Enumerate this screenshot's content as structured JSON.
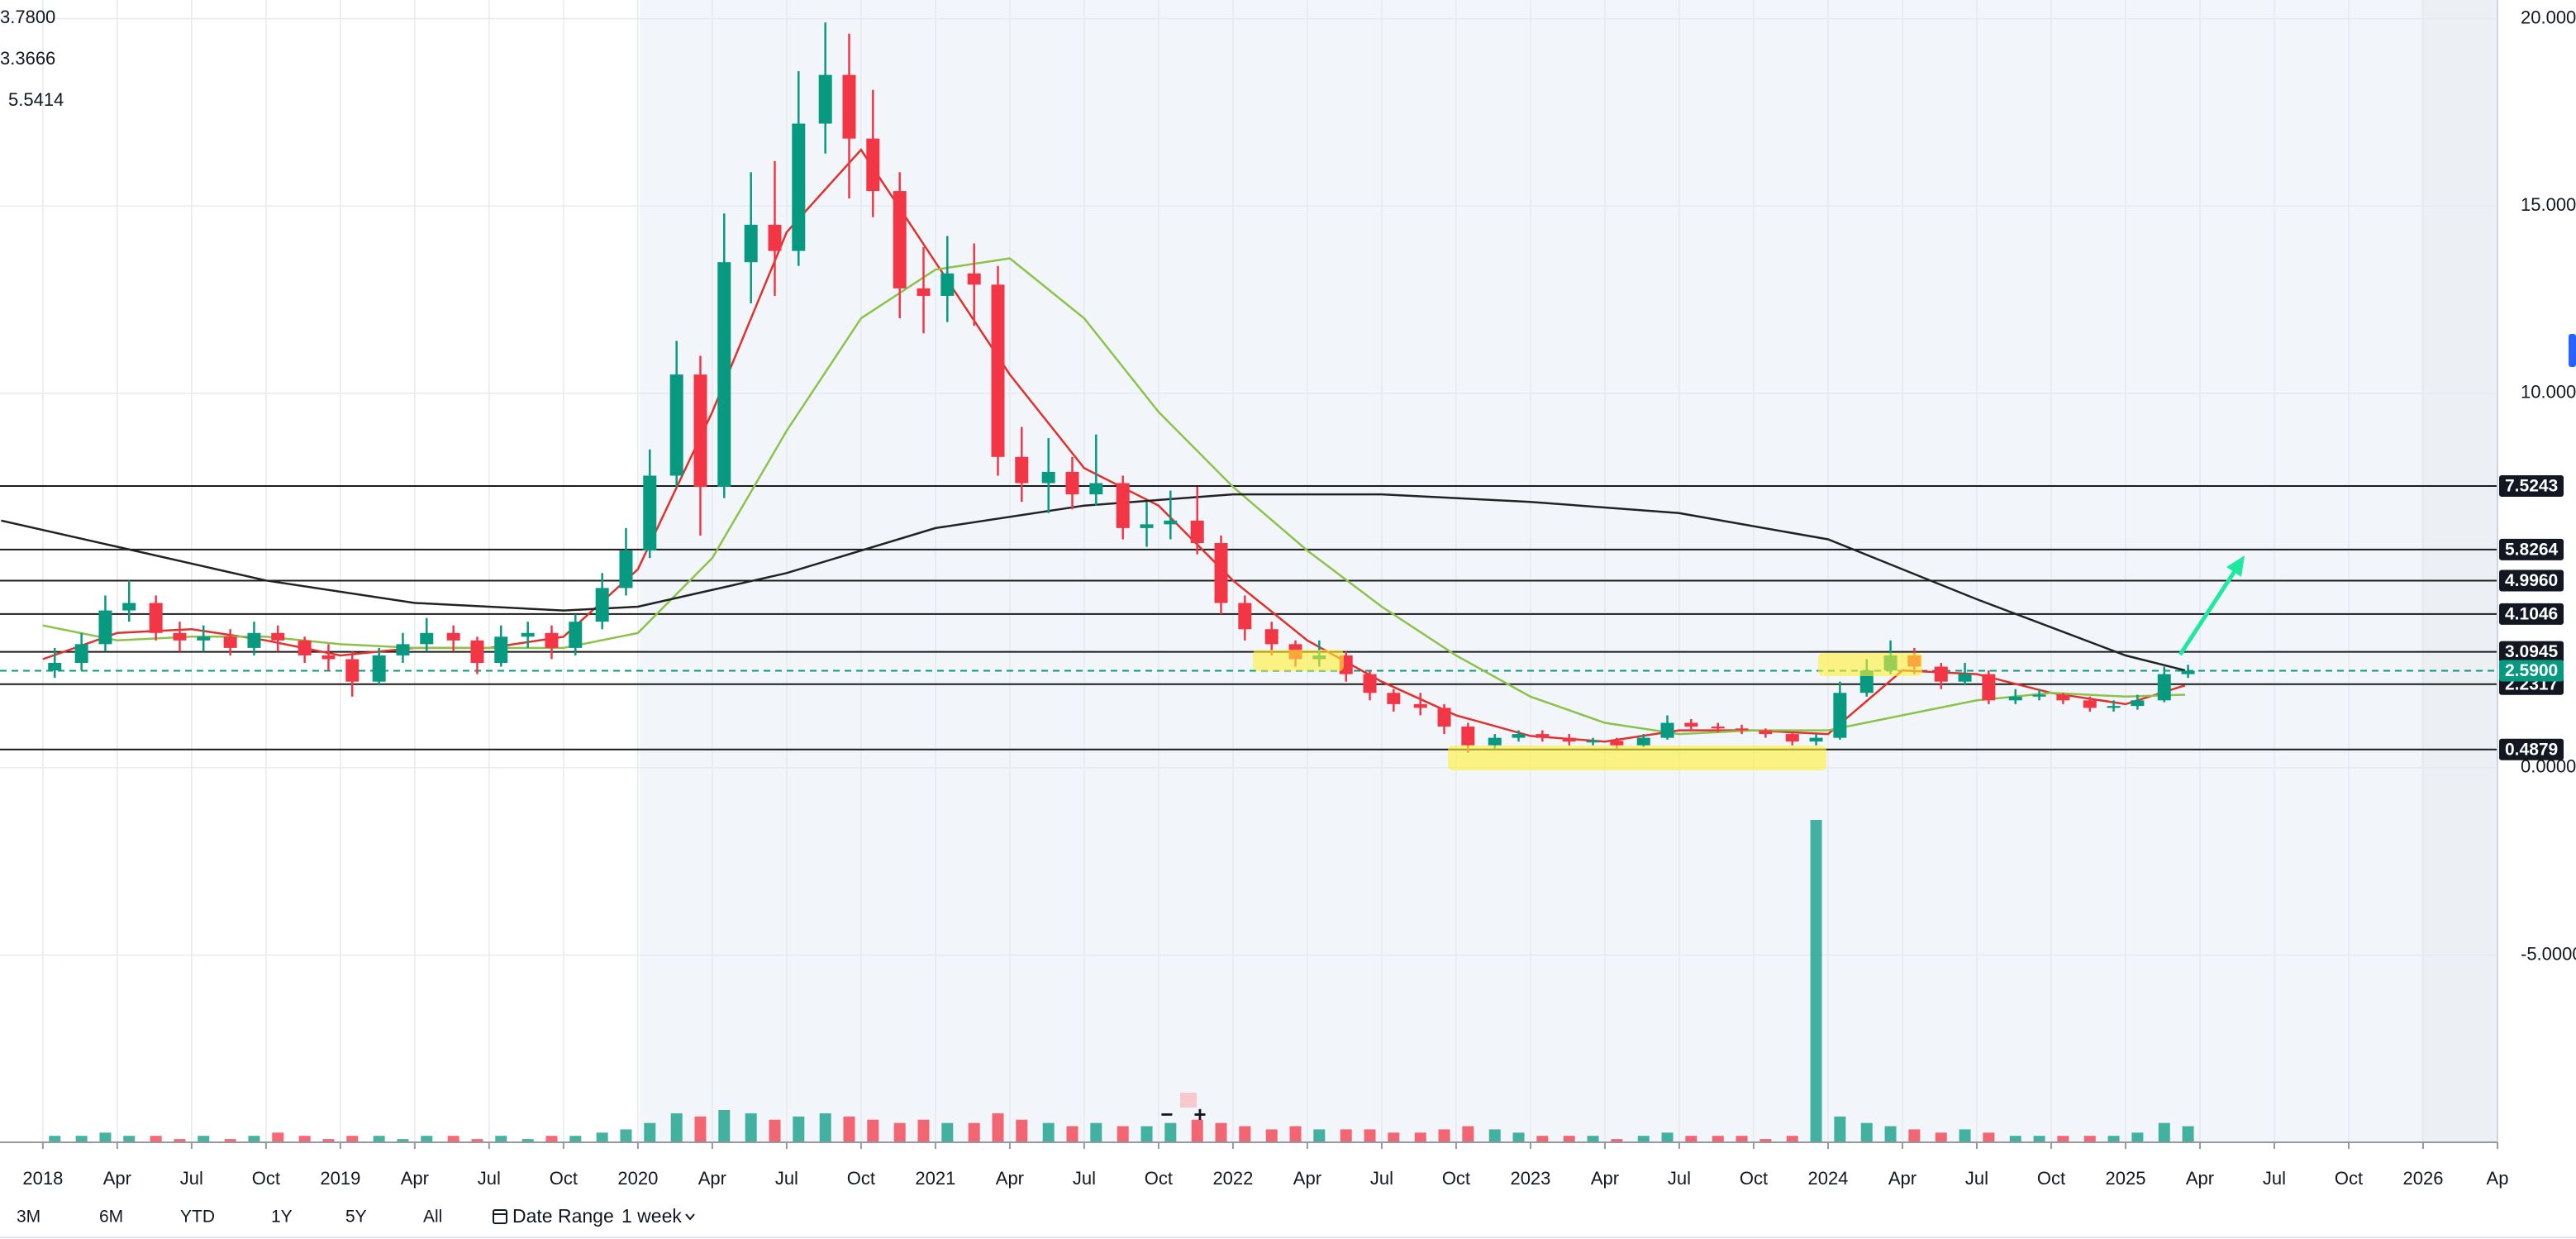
{
  "chart_data": {
    "type": "candlestick",
    "x": [
      2018.04,
      2018.13,
      2018.21,
      2018.29,
      2018.38,
      2018.46,
      2018.54,
      2018.63,
      2018.71,
      2018.79,
      2018.88,
      2018.96,
      2019.04,
      2019.13,
      2019.21,
      2019.29,
      2019.38,
      2019.46,
      2019.54,
      2019.63,
      2019.71,
      2019.79,
      2019.88,
      2019.96,
      2020.04,
      2020.13,
      2020.21,
      2020.29,
      2020.38,
      2020.46,
      2020.54,
      2020.63,
      2020.71,
      2020.79,
      2020.88,
      2020.96,
      2021.04,
      2021.13,
      2021.21,
      2021.29,
      2021.38,
      2021.46,
      2021.54,
      2021.63,
      2021.71,
      2021.79,
      2021.88,
      2021.96,
      2022.04,
      2022.13,
      2022.21,
      2022.29,
      2022.38,
      2022.46,
      2022.54,
      2022.63,
      2022.71,
      2022.79,
      2022.88,
      2022.96,
      2023.04,
      2023.13,
      2023.21,
      2023.29,
      2023.38,
      2023.46,
      2023.54,
      2023.63,
      2023.71,
      2023.79,
      2023.88,
      2023.96,
      2024.04,
      2024.13,
      2024.21,
      2024.29,
      2024.38,
      2024.46,
      2024.54,
      2024.63,
      2024.71,
      2024.79,
      2024.88,
      2024.96,
      2025.04,
      2025.13,
      2025.21
    ],
    "open": [
      2.6,
      2.8,
      3.3,
      4.2,
      4.4,
      3.6,
      3.4,
      3.5,
      3.2,
      3.6,
      3.4,
      3.0,
      2.9,
      2.3,
      3.0,
      3.3,
      3.6,
      3.4,
      2.8,
      3.5,
      3.6,
      3.2,
      3.9,
      4.8,
      5.8,
      7.8,
      10.5,
      7.5,
      13.5,
      14.5,
      13.8,
      17.2,
      18.5,
      16.8,
      15.4,
      12.8,
      12.6,
      13.2,
      12.9,
      8.3,
      7.6,
      7.9,
      7.3,
      7.6,
      6.4,
      6.5,
      6.6,
      6.0,
      4.4,
      3.7,
      3.3,
      2.9,
      3.0,
      2.5,
      2.0,
      1.7,
      1.6,
      1.1,
      0.6,
      0.8,
      0.9,
      0.8,
      0.7,
      0.72,
      0.6,
      0.8,
      1.2,
      1.1,
      1.05,
      1.0,
      0.9,
      0.7,
      0.8,
      2.0,
      2.6,
      3.0,
      2.7,
      2.3,
      2.5,
      1.8,
      1.9,
      1.95,
      1.8,
      1.6,
      1.65,
      1.8,
      2.5
    ],
    "high": [
      3.2,
      3.6,
      4.6,
      5.0,
      4.6,
      3.9,
      3.8,
      3.7,
      3.9,
      3.8,
      3.5,
      3.3,
      3.1,
      3.2,
      3.6,
      4.0,
      3.8,
      3.5,
      3.8,
      3.9,
      3.8,
      4.1,
      5.2,
      6.4,
      8.5,
      11.4,
      11.0,
      14.8,
      15.9,
      16.2,
      18.6,
      19.9,
      19.6,
      18.1,
      15.9,
      13.9,
      14.2,
      14.0,
      13.4,
      9.1,
      8.8,
      8.3,
      8.9,
      7.8,
      7.1,
      7.4,
      7.5,
      6.2,
      4.6,
      3.9,
      3.4,
      3.4,
      3.1,
      2.6,
      2.1,
      2.0,
      1.7,
      1.2,
      0.9,
      1.0,
      1.0,
      0.9,
      0.8,
      0.8,
      0.9,
      1.4,
      1.3,
      1.2,
      1.15,
      1.05,
      0.95,
      0.9,
      2.3,
      2.9,
      3.4,
      3.2,
      2.8,
      2.8,
      2.6,
      2.1,
      2.1,
      2.0,
      1.9,
      1.8,
      1.95,
      2.7,
      2.75
    ],
    "low": [
      2.4,
      2.6,
      3.1,
      3.9,
      3.4,
      3.1,
      3.1,
      3.0,
      3.0,
      3.1,
      2.8,
      2.6,
      1.9,
      2.2,
      2.8,
      3.1,
      3.1,
      2.5,
      2.7,
      3.2,
      2.9,
      3.0,
      3.7,
      4.6,
      5.6,
      7.5,
      6.2,
      7.2,
      12.4,
      12.6,
      13.4,
      16.4,
      15.2,
      14.7,
      12.0,
      11.6,
      11.9,
      11.8,
      7.8,
      7.1,
      6.8,
      6.9,
      7.0,
      6.1,
      5.9,
      6.1,
      5.7,
      4.1,
      3.4,
      3.0,
      2.7,
      2.7,
      2.3,
      1.8,
      1.5,
      1.4,
      0.9,
      0.4,
      0.5,
      0.7,
      0.7,
      0.6,
      0.6,
      0.5,
      0.55,
      0.75,
      1.0,
      0.95,
      0.9,
      0.8,
      0.6,
      0.6,
      0.75,
      1.9,
      2.5,
      2.5,
      2.1,
      2.2,
      1.7,
      1.7,
      1.8,
      1.7,
      1.5,
      1.5,
      1.55,
      1.75,
      2.4
    ],
    "close": [
      2.8,
      3.3,
      4.2,
      4.4,
      3.6,
      3.4,
      3.5,
      3.2,
      3.6,
      3.4,
      3.0,
      2.9,
      2.3,
      3.0,
      3.3,
      3.6,
      3.4,
      2.8,
      3.5,
      3.6,
      3.2,
      3.9,
      4.8,
      5.8,
      7.8,
      10.5,
      7.5,
      13.5,
      14.5,
      13.8,
      17.2,
      18.5,
      16.8,
      15.4,
      12.8,
      12.6,
      13.2,
      12.9,
      8.3,
      7.6,
      7.9,
      7.3,
      7.6,
      6.4,
      6.5,
      6.6,
      6.0,
      4.4,
      3.7,
      3.3,
      2.9,
      3.0,
      2.5,
      2.0,
      1.7,
      1.6,
      1.1,
      0.6,
      0.8,
      0.9,
      0.8,
      0.7,
      0.72,
      0.6,
      0.8,
      1.2,
      1.1,
      1.05,
      1.0,
      0.9,
      0.7,
      0.8,
      2.0,
      2.6,
      3.0,
      2.7,
      2.3,
      2.5,
      1.8,
      1.9,
      1.95,
      1.8,
      1.6,
      1.65,
      1.8,
      2.5,
      2.59
    ],
    "volume": [
      2,
      2,
      3,
      2,
      2,
      1,
      2,
      1,
      2,
      3,
      2,
      1,
      2,
      2,
      1,
      2,
      2,
      1,
      2,
      1,
      2,
      2,
      3,
      4,
      6,
      9,
      8,
      10,
      9,
      7,
      8,
      9,
      8,
      7,
      6,
      7,
      6,
      6,
      9,
      7,
      6,
      5,
      6,
      5,
      5,
      6,
      7,
      6,
      5,
      4,
      5,
      4,
      4,
      4,
      3,
      3,
      4,
      5,
      4,
      3,
      2,
      2,
      2,
      1,
      2,
      3,
      2,
      2,
      2,
      1,
      2,
      100,
      8,
      6,
      5,
      4,
      3,
      4,
      3,
      2,
      2,
      2,
      2,
      2,
      3,
      6,
      5
    ],
    "up_color": "#089981",
    "down_color": "#f23645",
    "moving_averages": [
      {
        "label": "3.7800",
        "color": "#e0312d",
        "x": [
          2018.0,
          2018.25,
          2018.5,
          2018.75,
          2019.0,
          2019.25,
          2019.5,
          2019.75,
          2020.0,
          2020.25,
          2020.5,
          2020.75,
          2021.0,
          2021.25,
          2021.5,
          2021.75,
          2022.0,
          2022.25,
          2022.5,
          2022.75,
          2023.0,
          2023.25,
          2023.5,
          2023.75,
          2024.0,
          2024.25,
          2024.5,
          2024.75,
          2025.0,
          2025.2
        ],
        "values": [
          2.9,
          3.6,
          3.7,
          3.4,
          3.0,
          3.2,
          3.2,
          3.5,
          5.3,
          9.5,
          14.3,
          16.5,
          13.5,
          10.5,
          8.0,
          7.0,
          5.0,
          3.4,
          2.3,
          1.4,
          0.85,
          0.7,
          1.0,
          1.0,
          0.9,
          2.6,
          2.5,
          2.0,
          1.7,
          2.2
        ]
      },
      {
        "label": "3.3666",
        "color": "#8bc34a",
        "x": [
          2018.0,
          2018.25,
          2018.5,
          2018.75,
          2019.0,
          2019.25,
          2019.5,
          2019.75,
          2020.0,
          2020.25,
          2020.5,
          2020.75,
          2021.0,
          2021.25,
          2021.5,
          2021.75,
          2022.0,
          2022.25,
          2022.5,
          2022.75,
          2023.0,
          2023.25,
          2023.5,
          2023.75,
          2024.0,
          2024.25,
          2024.5,
          2024.75,
          2025.0,
          2025.2
        ],
        "values": [
          3.8,
          3.4,
          3.5,
          3.5,
          3.3,
          3.2,
          3.2,
          3.2,
          3.6,
          5.6,
          9.0,
          12.0,
          13.3,
          13.6,
          12.0,
          9.5,
          7.5,
          5.8,
          4.3,
          3.0,
          1.9,
          1.2,
          0.9,
          1.0,
          1.0,
          1.4,
          1.8,
          2.0,
          1.9,
          1.95
        ]
      },
      {
        "label": "5.5414",
        "color": "#222222",
        "x": [
          2017.86,
          2018.25,
          2018.75,
          2019.25,
          2019.75,
          2020.0,
          2020.5,
          2021.0,
          2021.5,
          2022.0,
          2022.5,
          2023.0,
          2023.5,
          2024.0,
          2024.5,
          2025.0,
          2025.2
        ],
        "values": [
          6.6,
          5.9,
          5.0,
          4.4,
          4.2,
          4.3,
          5.2,
          6.4,
          7.0,
          7.3,
          7.3,
          7.1,
          6.8,
          6.1,
          4.5,
          3.0,
          2.6
        ]
      }
    ],
    "levels": [
      {
        "value": 7.5243,
        "label": "7.5243"
      },
      {
        "value": 5.8264,
        "label": "5.8264"
      },
      {
        "value": 4.996,
        "label": "4.9960"
      },
      {
        "value": 4.1046,
        "label": "4.1046"
      },
      {
        "value": 3.0945,
        "label": "3.0945"
      },
      {
        "value": 2.2317,
        "label": "2.2317"
      },
      {
        "value": 0.4879,
        "label": "0.4879"
      }
    ],
    "last_price": {
      "value": 2.59,
      "label": "2.5900",
      "color": "#089981"
    },
    "xlim": [
      2017.856,
      2026.25
    ],
    "ylim": [
      -10,
      20.5
    ],
    "vlim": [
      0,
      100
    ],
    "xticks": [
      2018,
      {
        "value": 2018.25,
        "label": "Apr"
      },
      {
        "value": 2018.5,
        "label": "Jul"
      },
      {
        "value": 2018.75,
        "label": "Oct"
      },
      2019,
      {
        "value": 2019.25,
        "label": "Apr"
      },
      {
        "value": 2019.5,
        "label": "Jul"
      },
      {
        "value": 2019.75,
        "label": "Oct"
      },
      2020,
      {
        "value": 2020.25,
        "label": "Apr"
      },
      {
        "value": 2020.5,
        "label": "Jul"
      },
      {
        "value": 2020.75,
        "label": "Oct"
      },
      2021,
      {
        "value": 2021.25,
        "label": "Apr"
      },
      {
        "value": 2021.5,
        "label": "Jul"
      },
      {
        "value": 2021.75,
        "label": "Oct"
      },
      2022,
      {
        "value": 2022.25,
        "label": "Apr"
      },
      {
        "value": 2022.5,
        "label": "Jul"
      },
      {
        "value": 2022.75,
        "label": "Oct"
      },
      2023,
      {
        "value": 2023.25,
        "label": "Apr"
      },
      {
        "value": 2023.5,
        "label": "Jul"
      },
      {
        "value": 2023.75,
        "label": "Oct"
      },
      2024,
      {
        "value": 2024.25,
        "label": "Apr"
      },
      {
        "value": 2024.5,
        "label": "Jul"
      },
      {
        "value": 2024.75,
        "label": "Oct"
      },
      2025,
      {
        "value": 2025.25,
        "label": "Apr"
      },
      {
        "value": 2025.5,
        "label": "Jul"
      },
      {
        "value": 2025.75,
        "label": "Oct"
      },
      2026,
      {
        "value": 2026.25,
        "label": "Ap"
      }
    ],
    "yticks": [
      {
        "value": -5,
        "label": "-5.0000"
      },
      {
        "value": 0,
        "label": "0.0000"
      },
      {
        "value": 10,
        "label": "10.0000"
      },
      {
        "value": 15,
        "label": "15.0000"
      },
      {
        "value": 20,
        "label": "20.0000"
      }
    ],
    "grid": true
  },
  "toolbar": {
    "ranges": [
      "3M",
      "6M",
      "YTD",
      "1Y",
      "5Y",
      "All"
    ],
    "date_range": "Date Range",
    "interval": "1 week"
  },
  "zoom_controls": [
    "−",
    "+"
  ]
}
